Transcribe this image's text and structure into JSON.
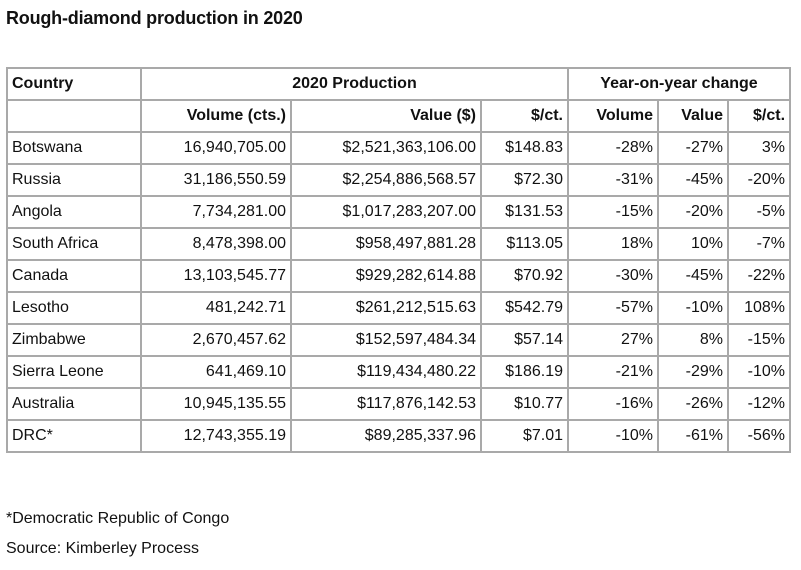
{
  "title": "Rough-diamond production in 2020",
  "headers": {
    "country": "Country",
    "production_group": "2020 Production",
    "change_group": "Year-on-year change",
    "columns": [
      "Volume (cts.)",
      "Value ($)",
      "$/ct.",
      "Volume",
      "Value",
      "$/ct."
    ]
  },
  "rows": [
    {
      "country": "Botswana",
      "volume": "16,940,705.00",
      "value": "$2,521,363,106.00",
      "per_ct": "$148.83",
      "chg_volume": "-28%",
      "chg_value": "-27%",
      "chg_per_ct": "3%"
    },
    {
      "country": "Russia",
      "volume": "31,186,550.59",
      "value": "$2,254,886,568.57",
      "per_ct": "$72.30",
      "chg_volume": "-31%",
      "chg_value": "-45%",
      "chg_per_ct": "-20%"
    },
    {
      "country": "Angola",
      "volume": "7,734,281.00",
      "value": "$1,017,283,207.00",
      "per_ct": "$131.53",
      "chg_volume": "-15%",
      "chg_value": "-20%",
      "chg_per_ct": "-5%"
    },
    {
      "country": "South Africa",
      "volume": "8,478,398.00",
      "value": "$958,497,881.28",
      "per_ct": "$113.05",
      "chg_volume": "18%",
      "chg_value": "10%",
      "chg_per_ct": "-7%"
    },
    {
      "country": "Canada",
      "volume": "13,103,545.77",
      "value": "$929,282,614.88",
      "per_ct": "$70.92",
      "chg_volume": "-30%",
      "chg_value": "-45%",
      "chg_per_ct": "-22%"
    },
    {
      "country": "Lesotho",
      "volume": "481,242.71",
      "value": "$261,212,515.63",
      "per_ct": "$542.79",
      "chg_volume": "-57%",
      "chg_value": "-10%",
      "chg_per_ct": "108%"
    },
    {
      "country": "Zimbabwe",
      "volume": "2,670,457.62",
      "value": "$152,597,484.34",
      "per_ct": "$57.14",
      "chg_volume": "27%",
      "chg_value": "8%",
      "chg_per_ct": "-15%"
    },
    {
      "country": "Sierra Leone",
      "volume": "641,469.10",
      "value": "$119,434,480.22",
      "per_ct": "$186.19",
      "chg_volume": "-21%",
      "chg_value": "-29%",
      "chg_per_ct": "-10%"
    },
    {
      "country": "Australia",
      "volume": "10,945,135.55",
      "value": "$117,876,142.53",
      "per_ct": "$10.77",
      "chg_volume": "-16%",
      "chg_value": "-26%",
      "chg_per_ct": "-12%"
    },
    {
      "country": "DRC*",
      "volume": "12,743,355.19",
      "value": "$89,285,337.96",
      "per_ct": "$7.01",
      "chg_volume": "-10%",
      "chg_value": "-61%",
      "chg_per_ct": "-56%"
    }
  ],
  "footnote": "*Democratic Republic of Congo",
  "source": "Source: Kimberley Process"
}
